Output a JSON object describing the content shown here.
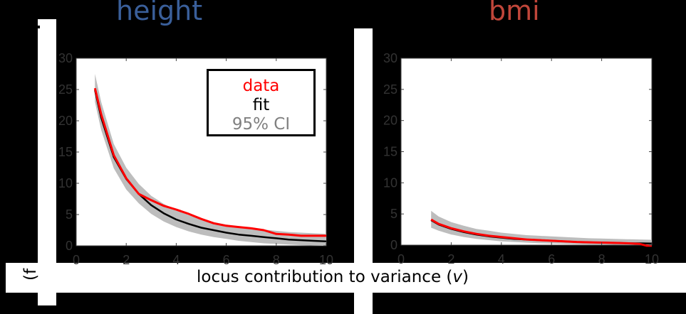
{
  "figure": {
    "background": "#000000",
    "xlabel_prefix": "locus contribution to variance (",
    "xlabel_var": "v",
    "xlabel_suffix": ")",
    "ylabel_fragment": "(f",
    "colors": {
      "title_height": "#3a5f9a",
      "title_bmi": "#c0463a",
      "data": "#ff0000",
      "fit": "#000000",
      "ci": "#bdbdbd",
      "tick_label": "#333333"
    }
  },
  "legend": {
    "data_label": "data",
    "fit_label": "fit",
    "ci_label": "95% CI"
  },
  "chart_data": [
    {
      "type": "line",
      "title": "height",
      "xlabel": "locus contribution to variance (v)",
      "ylabel": "",
      "xlim": [
        0,
        10
      ],
      "ylim": [
        0,
        30
      ],
      "xticks": [
        0,
        2,
        4,
        6,
        8,
        10
      ],
      "yticks": [
        0,
        5,
        10,
        15,
        20,
        25,
        30
      ],
      "grid": false,
      "legend_position": "upper right",
      "legend": [
        "data",
        "fit",
        "95% CI"
      ],
      "series": [
        {
          "name": "data",
          "color": "#ff0000",
          "x": [
            0.75,
            1.0,
            1.5,
            2.0,
            2.5,
            3.0,
            3.5,
            4.0,
            4.5,
            5.0,
            5.5,
            6.0,
            6.5,
            7.0,
            7.5,
            8.0,
            8.5,
            9.0,
            9.5,
            10.0
          ],
          "y": [
            25.2,
            21.0,
            14.5,
            10.8,
            8.3,
            7.3,
            6.4,
            5.8,
            5.1,
            4.3,
            3.6,
            3.2,
            3.0,
            2.8,
            2.5,
            1.9,
            1.8,
            1.6,
            1.6,
            1.6
          ]
        },
        {
          "name": "fit",
          "color": "#000000",
          "x": [
            0.75,
            1.0,
            1.5,
            2.0,
            2.5,
            3.0,
            3.5,
            4.0,
            4.5,
            5.0,
            5.5,
            6.0,
            6.5,
            7.0,
            7.5,
            8.0,
            8.5,
            9.0,
            9.5,
            10.0
          ],
          "y": [
            24.9,
            20.5,
            14.2,
            10.7,
            8.3,
            6.5,
            5.2,
            4.2,
            3.5,
            2.9,
            2.5,
            2.1,
            1.8,
            1.6,
            1.4,
            1.2,
            1.0,
            0.9,
            0.8,
            0.7
          ]
        },
        {
          "name": "95% CI upper",
          "color": "#bdbdbd",
          "x": [
            0.75,
            1.0,
            1.5,
            2.0,
            2.5,
            3.0,
            3.5,
            4.0,
            4.5,
            5.0,
            5.5,
            6.0,
            6.5,
            7.0,
            7.5,
            8.0,
            8.5,
            9.0,
            9.5,
            10.0
          ],
          "y": [
            27.5,
            23.0,
            16.3,
            12.5,
            9.9,
            8.0,
            6.7,
            5.7,
            4.9,
            4.3,
            3.8,
            3.4,
            3.1,
            2.8,
            2.6,
            2.4,
            2.2,
            2.1,
            2.0,
            1.9
          ]
        },
        {
          "name": "95% CI lower",
          "color": "#bdbdbd",
          "x": [
            0.75,
            1.0,
            1.5,
            2.0,
            2.5,
            3.0,
            3.5,
            4.0,
            4.5,
            5.0,
            5.5,
            6.0,
            6.5,
            7.0,
            7.5,
            8.0,
            8.5,
            9.0,
            9.5,
            10.0
          ],
          "y": [
            23.0,
            18.5,
            12.4,
            9.0,
            6.8,
            5.1,
            3.9,
            3.0,
            2.3,
            1.8,
            1.4,
            1.1,
            0.8,
            0.6,
            0.4,
            0.3,
            0.2,
            0.1,
            0.05,
            0.0
          ]
        }
      ]
    },
    {
      "type": "line",
      "title": "bmi",
      "xlabel": "locus contribution to variance (v)",
      "ylabel": "",
      "xlim": [
        0,
        10
      ],
      "ylim": [
        0,
        30
      ],
      "xticks": [
        0,
        2,
        4,
        6,
        8,
        10
      ],
      "yticks": [
        0,
        5,
        10,
        15,
        20,
        25,
        30
      ],
      "grid": false,
      "series": [
        {
          "name": "data",
          "color": "#ff0000",
          "x": [
            1.2,
            1.5,
            2.0,
            2.5,
            3.0,
            3.5,
            4.0,
            4.5,
            5.0,
            5.5,
            6.0,
            6.5,
            7.0,
            7.5,
            8.0,
            8.5,
            9.0,
            9.5,
            9.8,
            10.0
          ],
          "y": [
            4.1,
            3.4,
            2.7,
            2.2,
            1.8,
            1.5,
            1.3,
            1.1,
            0.9,
            0.8,
            0.7,
            0.6,
            0.5,
            0.45,
            0.4,
            0.35,
            0.3,
            0.2,
            -0.1,
            -0.1
          ]
        },
        {
          "name": "fit",
          "color": "#000000",
          "x": [
            1.2,
            1.5,
            2.0,
            2.5,
            3.0,
            3.5,
            4.0,
            4.5,
            5.0,
            5.5,
            6.0,
            6.5,
            7.0,
            7.5,
            8.0,
            8.5,
            9.0,
            9.5,
            10.0
          ],
          "y": [
            4.0,
            3.3,
            2.6,
            2.1,
            1.7,
            1.4,
            1.2,
            1.0,
            0.9,
            0.8,
            0.7,
            0.6,
            0.5,
            0.45,
            0.4,
            0.35,
            0.3,
            0.28,
            0.25
          ]
        },
        {
          "name": "95% CI upper",
          "color": "#bdbdbd",
          "x": [
            1.2,
            1.5,
            2.0,
            2.5,
            3.0,
            3.5,
            4.0,
            4.5,
            5.0,
            5.5,
            6.0,
            6.5,
            7.0,
            7.5,
            8.0,
            8.5,
            9.0,
            9.5,
            10.0
          ],
          "y": [
            5.5,
            4.6,
            3.7,
            3.1,
            2.6,
            2.3,
            2.0,
            1.8,
            1.6,
            1.5,
            1.4,
            1.3,
            1.2,
            1.1,
            1.05,
            1.0,
            0.95,
            0.9,
            0.85
          ]
        },
        {
          "name": "95% CI lower",
          "color": "#bdbdbd",
          "x": [
            1.2,
            1.5,
            2.0,
            2.5,
            3.0,
            3.5,
            4.0,
            4.5,
            5.0,
            5.5,
            6.0,
            6.5,
            7.0,
            7.5,
            8.0,
            8.5,
            9.0,
            9.5,
            10.0
          ],
          "y": [
            2.8,
            2.3,
            1.7,
            1.3,
            1.0,
            0.8,
            0.6,
            0.5,
            0.4,
            0.3,
            0.25,
            0.2,
            0.15,
            0.1,
            0.08,
            0.06,
            0.05,
            0.04,
            0.03
          ]
        }
      ]
    }
  ]
}
